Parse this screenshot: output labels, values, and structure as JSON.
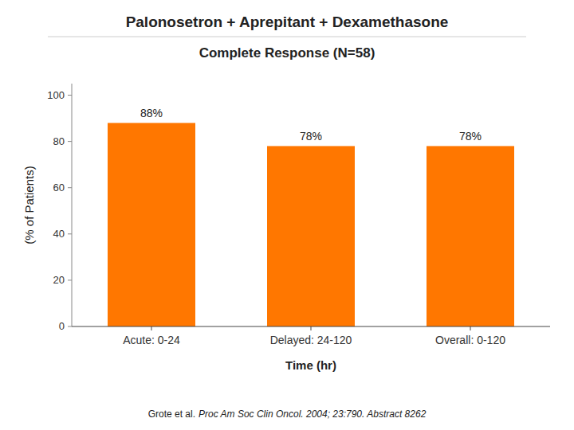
{
  "chart_data": {
    "type": "bar",
    "title": "Palonosetron + Aprepitant + Dexamethasone",
    "subtitle": "Complete Response (N=58)",
    "categories": [
      "Acute: 0-24",
      "Delayed: 24-120",
      "Overall: 0-120"
    ],
    "values": [
      88,
      78,
      78
    ],
    "value_labels": [
      "88%",
      "78%",
      "78%"
    ],
    "data_labels": true,
    "color": "#ff7700",
    "ylabel": "(% of Patients)",
    "xlabel": "Time (hr)",
    "ylim": [
      0,
      105
    ],
    "yticks": [
      0,
      20,
      40,
      60,
      80,
      100
    ],
    "grid": false,
    "annotations": [
      "Grote et al.",
      "Proc Am Soc Clin Oncol. 2004; 23:790. Abstract 8262"
    ]
  }
}
